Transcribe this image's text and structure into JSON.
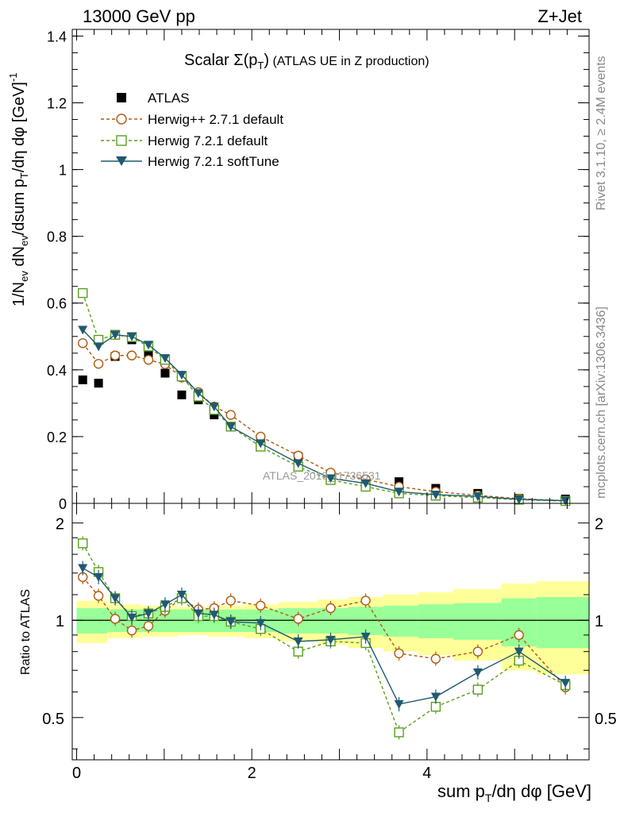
{
  "header": {
    "left": "13000 GeV pp",
    "right": "Z+Jet"
  },
  "side_labels": {
    "rivet": "Rivet 3.1.10, ≥ 2.4M events",
    "mcplots": "mcplots.cern.ch [arXiv:1306.3436]"
  },
  "watermark": "ATLAS_2019_I1736531",
  "colors": {
    "atlas": "#000000",
    "herwigpp": "#b05a10",
    "herwig_default": "#5a9e1e",
    "herwig_soft": "#1f5a70",
    "band_inner": "#99ff99",
    "band_outer": "#ffff99"
  },
  "chart_data": [
    {
      "type": "line",
      "title": "Scalar Σ(p_T) (ATLAS UE in Z production)",
      "title_main": "Scalar ",
      "title_sigma": "Σ(p",
      "title_sub": "T",
      "title_close": ")",
      "title_suffix": " (ATLAS UE in Z production)",
      "ylabel": "1/N_ev dN_ev/dsum p_T/dη dφ [GeV]^-1",
      "ylabel_parts": {
        "a": "1/N",
        "a_sub": "ev",
        "b": " dN",
        "b_sub": "ev",
        "c": "/dsum p",
        "c_sub": "T",
        "d": "/dη dφ  [GeV]",
        "d_sup": "-1"
      },
      "xlim": [
        -0.05,
        5.85
      ],
      "ylim": [
        0,
        1.42
      ],
      "yticks": [
        0,
        0.2,
        0.4,
        0.6,
        0.8,
        1,
        1.2,
        1.4
      ],
      "yticklabels": [
        "0",
        "0.2",
        "0.4",
        "0.6",
        "0.8",
        "1",
        "1.2",
        "1.4"
      ],
      "x": [
        0.07,
        0.25,
        0.44,
        0.63,
        0.82,
        1.01,
        1.2,
        1.39,
        1.57,
        1.76,
        2.1,
        2.53,
        2.9,
        3.3,
        3.68,
        4.1,
        4.58,
        5.05,
        5.58
      ],
      "legend": [
        "ATLAS",
        "Herwig++ 2.7.1 default",
        "Herwig 7.2.1 default",
        "Herwig 7.2.1 softTune"
      ],
      "series": [
        {
          "name": "ATLAS",
          "values": [
            0.37,
            0.36,
            0.44,
            0.49,
            0.45,
            0.39,
            0.325,
            0.31,
            0.265,
            0.23,
            0.18,
            0.14,
            0.08,
            0.06,
            0.065,
            0.045,
            0.03,
            0.015,
            0.013
          ]
        },
        {
          "name": "Herwig++ 2.7.1 default",
          "values": [
            0.48,
            0.418,
            0.443,
            0.443,
            0.43,
            0.417,
            0.377,
            0.333,
            0.29,
            0.265,
            0.2,
            0.143,
            0.092,
            0.072,
            0.05,
            0.035,
            0.024,
            0.014,
            0.008
          ]
        },
        {
          "name": "Herwig 7.2.1 default",
          "values": [
            0.63,
            0.49,
            0.505,
            0.498,
            0.47,
            0.43,
            0.38,
            0.32,
            0.28,
            0.23,
            0.17,
            0.11,
            0.07,
            0.05,
            0.03,
            0.023,
            0.017,
            0.011,
            0.007
          ]
        },
        {
          "name": "Herwig 7.2.1 softTune",
          "values": [
            0.52,
            0.47,
            0.505,
            0.5,
            0.475,
            0.435,
            0.385,
            0.33,
            0.29,
            0.23,
            0.18,
            0.12,
            0.075,
            0.06,
            0.035,
            0.026,
            0.021,
            0.012,
            0.008
          ]
        }
      ]
    },
    {
      "type": "line",
      "ylabel": "Ratio to ATLAS",
      "xlabel": "sum p_T/dη dφ [GeV]",
      "xlabel_parts": {
        "a": "sum p",
        "a_sub": "T",
        "b": "/dη dφ [GeV]"
      },
      "xlim": [
        -0.05,
        5.85
      ],
      "ylim": [
        0.37,
        2.3
      ],
      "xticks": [
        0,
        2,
        4
      ],
      "xticklabels": [
        "0",
        "2",
        "4"
      ],
      "yticks": [
        0.5,
        1,
        2
      ],
      "yticklabels": [
        "0.5",
        "1",
        "2"
      ],
      "x": [
        0.07,
        0.25,
        0.44,
        0.63,
        0.82,
        1.01,
        1.2,
        1.39,
        1.57,
        1.76,
        2.1,
        2.53,
        2.9,
        3.3,
        3.68,
        4.1,
        4.58,
        5.05,
        5.58
      ],
      "band_edges": [
        0,
        0.15,
        0.35,
        0.55,
        0.75,
        0.95,
        1.15,
        1.35,
        1.5,
        1.65,
        1.9,
        2.3,
        2.75,
        3.1,
        3.5,
        3.9,
        4.3,
        4.85,
        5.25,
        5.85
      ],
      "band_inner": [
        0.09,
        0.09,
        0.08,
        0.08,
        0.08,
        0.08,
        0.08,
        0.08,
        0.08,
        0.08,
        0.08,
        0.09,
        0.09,
        0.1,
        0.11,
        0.12,
        0.13,
        0.17,
        0.18
      ],
      "band_outer": [
        0.15,
        0.15,
        0.12,
        0.12,
        0.11,
        0.11,
        0.1,
        0.1,
        0.11,
        0.11,
        0.12,
        0.14,
        0.16,
        0.18,
        0.2,
        0.22,
        0.25,
        0.3,
        0.32
      ],
      "series": [
        {
          "name": "Herwig++ 2.7.1 default",
          "values": [
            1.36,
            1.19,
            1.01,
            0.93,
            0.96,
            1.07,
            1.17,
            1.08,
            1.09,
            1.15,
            1.11,
            1.01,
            1.09,
            1.15,
            0.79,
            0.76,
            0.8,
            0.9,
            0.62
          ]
        },
        {
          "name": "Herwig 7.2.1 default",
          "values": [
            1.73,
            1.41,
            1.17,
            1.03,
            1.05,
            1.1,
            1.17,
            1.03,
            1.03,
            0.99,
            0.94,
            0.8,
            0.86,
            0.85,
            0.45,
            0.54,
            0.61,
            0.75,
            0.63
          ]
        },
        {
          "name": "Herwig 7.2.1 softTune",
          "values": [
            1.45,
            1.36,
            1.17,
            1.02,
            1.05,
            1.12,
            1.2,
            1.05,
            1.04,
            0.99,
            0.98,
            0.86,
            0.87,
            0.89,
            0.55,
            0.58,
            0.69,
            0.8,
            0.64
          ]
        }
      ]
    }
  ]
}
